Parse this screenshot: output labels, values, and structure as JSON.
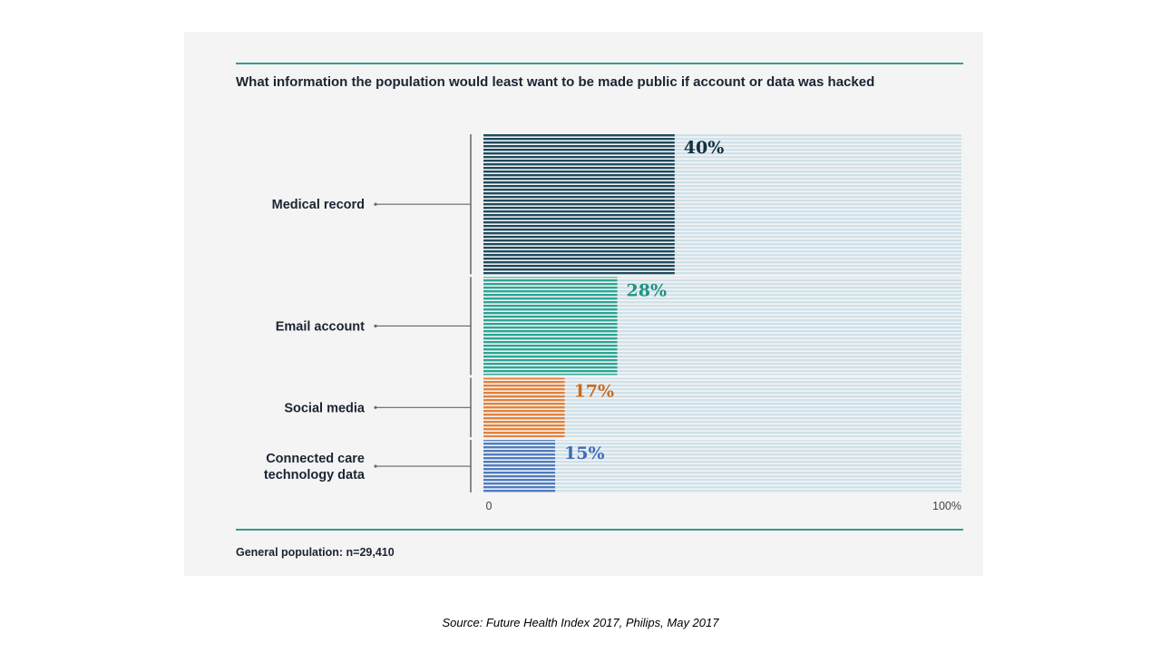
{
  "footnote": "General population: n=29,410",
  "source": "Source: Future Health Index 2017, Philips, May 2017",
  "chart_data": {
    "type": "bar",
    "orientation": "horizontal",
    "title": "What information the population would least want to be made public if account or data was hacked",
    "categories": [
      "Medical record",
      "Email account",
      "Social media",
      "Connected care technology data"
    ],
    "category_label_lines": [
      [
        "Medical record"
      ],
      [
        "Email account"
      ],
      [
        "Social media"
      ],
      [
        "Connected care",
        "technology data"
      ]
    ],
    "values": [
      40,
      28,
      17,
      15
    ],
    "value_labels": [
      "40%",
      "28%",
      "17%",
      "15%"
    ],
    "colors": [
      "#1f4a5c",
      "#2aa694",
      "#e2823c",
      "#4f7cc0"
    ],
    "label_colors": [
      "#10303f",
      "#1f9484",
      "#c96a1e",
      "#3f6db3"
    ],
    "background_stripe_color": "#cfe1ea",
    "xlim": [
      0,
      100
    ],
    "x_tick_labels": [
      "0",
      "100%"
    ],
    "bar_widths_relative_to_value": true
  }
}
